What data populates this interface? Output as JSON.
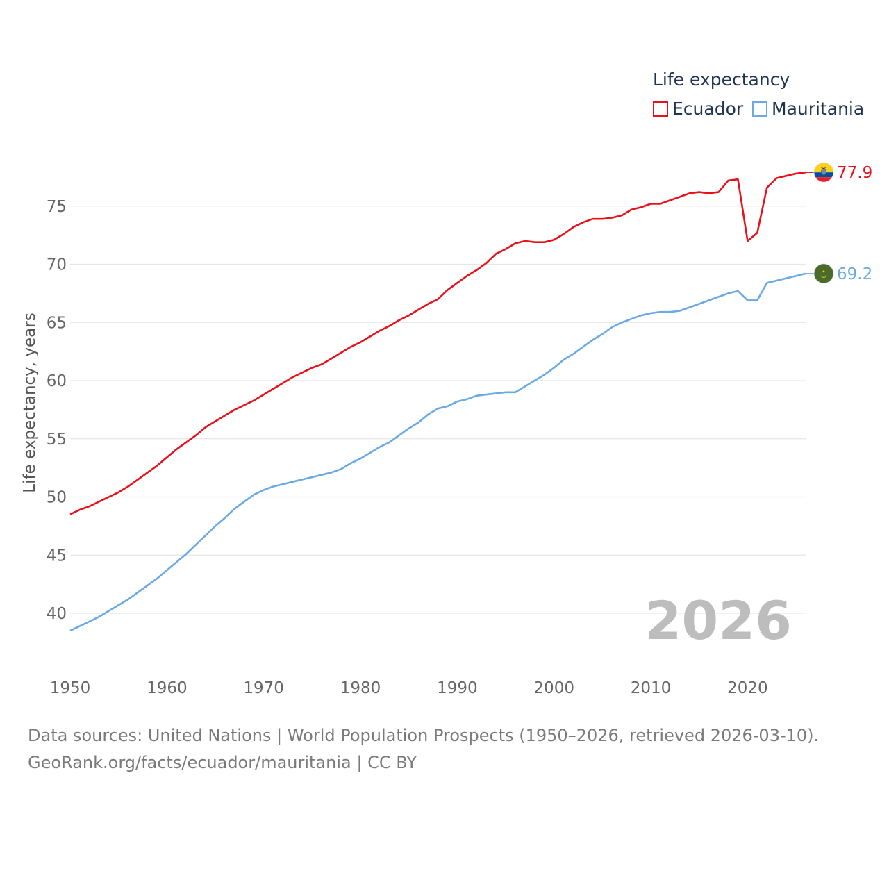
{
  "legend": {
    "title": "Life expectancy"
  },
  "footer": {
    "line1": "Data sources: United Nations | World Population Prospects (1950–2026, retrieved 2026-03-10).",
    "line2": "GeoRank.org/facts/ecuador/mauritania | CC BY"
  },
  "chart_data": {
    "type": "line",
    "title": "",
    "xlabel": "",
    "ylabel": "Life expectancy, years",
    "year_label": "2026",
    "xlim": [
      1950,
      2026
    ],
    "ylim": [
      36,
      79
    ],
    "x_ticks": [
      1950,
      1960,
      1970,
      1980,
      1990,
      2000,
      2010,
      2020
    ],
    "y_ticks": [
      40,
      45,
      50,
      55,
      60,
      65,
      70,
      75
    ],
    "grid": true,
    "legend_position": "top-right",
    "x": [
      1950,
      1951,
      1952,
      1953,
      1954,
      1955,
      1956,
      1957,
      1958,
      1959,
      1960,
      1961,
      1962,
      1963,
      1964,
      1965,
      1966,
      1967,
      1968,
      1969,
      1970,
      1971,
      1972,
      1973,
      1974,
      1975,
      1976,
      1977,
      1978,
      1979,
      1980,
      1981,
      1982,
      1983,
      1984,
      1985,
      1986,
      1987,
      1988,
      1989,
      1990,
      1991,
      1992,
      1993,
      1994,
      1995,
      1996,
      1997,
      1998,
      1999,
      2000,
      2001,
      2002,
      2003,
      2004,
      2005,
      2006,
      2007,
      2008,
      2009,
      2010,
      2011,
      2012,
      2013,
      2014,
      2015,
      2016,
      2017,
      2018,
      2019,
      2020,
      2021,
      2022,
      2023,
      2024,
      2025,
      2026
    ],
    "series": [
      {
        "name": "Ecuador",
        "color": "#e8111a",
        "end_label": "77.9",
        "flag": "ecuador-flag",
        "values": [
          48.5,
          48.9,
          49.2,
          49.6,
          50.0,
          50.4,
          50.9,
          51.5,
          52.1,
          52.7,
          53.4,
          54.1,
          54.7,
          55.3,
          56.0,
          56.5,
          57.0,
          57.5,
          57.9,
          58.3,
          58.8,
          59.3,
          59.8,
          60.3,
          60.7,
          61.1,
          61.4,
          61.9,
          62.4,
          62.9,
          63.3,
          63.8,
          64.3,
          64.7,
          65.2,
          65.6,
          66.1,
          66.6,
          67.0,
          67.8,
          68.4,
          69.0,
          69.5,
          70.1,
          70.9,
          71.3,
          71.8,
          72.0,
          71.9,
          71.9,
          72.1,
          72.6,
          73.2,
          73.6,
          73.9,
          73.9,
          74.0,
          74.2,
          74.7,
          74.9,
          75.2,
          75.2,
          75.5,
          75.8,
          76.1,
          76.2,
          76.1,
          76.2,
          77.2,
          77.3,
          72.0,
          72.7,
          76.6,
          77.4,
          77.6,
          77.8,
          77.9
        ]
      },
      {
        "name": "Mauritania",
        "color": "#6aa9e3",
        "end_label": "69.2",
        "flag": "mauritania-flag",
        "values": [
          38.5,
          38.9,
          39.3,
          39.7,
          40.2,
          40.7,
          41.2,
          41.8,
          42.4,
          43.0,
          43.7,
          44.4,
          45.1,
          45.9,
          46.7,
          47.5,
          48.2,
          49.0,
          49.6,
          50.2,
          50.6,
          50.9,
          51.1,
          51.3,
          51.5,
          51.7,
          51.9,
          52.1,
          52.4,
          52.9,
          53.3,
          53.8,
          54.3,
          54.7,
          55.3,
          55.9,
          56.4,
          57.1,
          57.6,
          57.8,
          58.2,
          58.4,
          58.7,
          58.8,
          58.9,
          59.0,
          59.0,
          59.5,
          60.0,
          60.5,
          61.1,
          61.8,
          62.3,
          62.9,
          63.5,
          64.0,
          64.6,
          65.0,
          65.3,
          65.6,
          65.8,
          65.9,
          65.9,
          66.0,
          66.3,
          66.6,
          66.9,
          67.2,
          67.5,
          67.7,
          66.9,
          66.9,
          68.4,
          68.6,
          68.8,
          69.0,
          69.2
        ]
      }
    ]
  }
}
